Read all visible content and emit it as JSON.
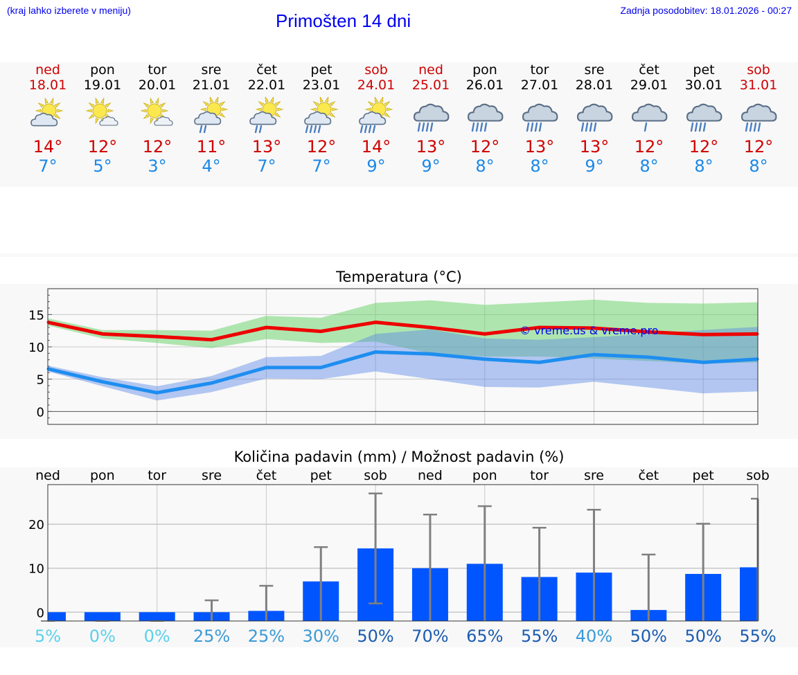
{
  "header": {
    "hint": "(kraj lahko izberete v meniju)",
    "title": "Primošten 14 dni",
    "updated": "Zadnja posodobitev: 18.01.2026 - 00:27"
  },
  "colors": {
    "title_blue": "#0000ee",
    "tmax_red": "#d00000",
    "tmin_blue": "#1a88e8",
    "bar_blue": "#0055ff",
    "error_bar_grey": "#808080",
    "max_band_green": "#8fdd8f",
    "min_band_blue": "#8ca8ee"
  },
  "days": [
    {
      "name": "ned",
      "date": "18.01",
      "weekend": true,
      "icon": "partly-cloudy-icon",
      "tmax": "14°",
      "tmin": "7°"
    },
    {
      "name": "pon",
      "date": "19.01",
      "weekend": false,
      "icon": "mostly-sunny-icon",
      "tmax": "12°",
      "tmin": "5°"
    },
    {
      "name": "tor",
      "date": "20.01",
      "weekend": false,
      "icon": "mostly-sunny-icon",
      "tmax": "12°",
      "tmin": "3°"
    },
    {
      "name": "sre",
      "date": "21.01",
      "weekend": false,
      "icon": "sun-light-rain-icon",
      "tmax": "11°",
      "tmin": "4°"
    },
    {
      "name": "čet",
      "date": "22.01",
      "weekend": false,
      "icon": "sun-light-rain-icon",
      "tmax": "13°",
      "tmin": "7°"
    },
    {
      "name": "pet",
      "date": "23.01",
      "weekend": false,
      "icon": "sun-rain-icon",
      "tmax": "12°",
      "tmin": "7°"
    },
    {
      "name": "sob",
      "date": "24.01",
      "weekend": true,
      "icon": "sun-rain-icon",
      "tmax": "14°",
      "tmin": "9°"
    },
    {
      "name": "ned",
      "date": "25.01",
      "weekend": true,
      "icon": "cloud-rain-icon",
      "tmax": "13°",
      "tmin": "9°"
    },
    {
      "name": "pon",
      "date": "26.01",
      "weekend": false,
      "icon": "cloud-rain-icon",
      "tmax": "12°",
      "tmin": "8°"
    },
    {
      "name": "tor",
      "date": "27.01",
      "weekend": false,
      "icon": "cloud-rain-icon",
      "tmax": "13°",
      "tmin": "8°"
    },
    {
      "name": "sre",
      "date": "28.01",
      "weekend": false,
      "icon": "cloud-rain-icon",
      "tmax": "13°",
      "tmin": "9°"
    },
    {
      "name": "čet",
      "date": "29.01",
      "weekend": false,
      "icon": "cloud-light-rain-icon",
      "tmax": "12°",
      "tmin": "8°"
    },
    {
      "name": "pet",
      "date": "30.01",
      "weekend": false,
      "icon": "cloud-rain-icon",
      "tmax": "12°",
      "tmin": "8°"
    },
    {
      "name": "sob",
      "date": "31.01",
      "weekend": true,
      "icon": "cloud-rain-icon",
      "tmax": "12°",
      "tmin": "8°"
    }
  ],
  "chart_data": [
    {
      "type": "line",
      "title": "Temperatura (°C)",
      "xlabel": "",
      "ylabel": "",
      "ylim": [
        -2,
        19
      ],
      "yticks": [
        0,
        5,
        10,
        15
      ],
      "grid": true,
      "watermark": "© vreme.us & vreme.pro",
      "x": [
        "18.01",
        "19.01",
        "20.01",
        "21.01",
        "22.01",
        "23.01",
        "24.01",
        "25.01",
        "26.01",
        "27.01",
        "28.01",
        "29.01",
        "30.01",
        "31.01"
      ],
      "series": [
        {
          "name": "max",
          "values": [
            13.8,
            12.0,
            11.6,
            11.1,
            13.0,
            12.4,
            13.8,
            13.0,
            12.0,
            13.0,
            12.9,
            12.3,
            11.9,
            12.0
          ],
          "band_low": [
            13.3,
            11.3,
            10.6,
            9.8,
            11.2,
            10.6,
            10.8,
            9.0,
            8.5,
            8.5,
            8.2,
            7.8,
            7.4,
            7.6
          ],
          "band_high": [
            14.4,
            12.6,
            12.6,
            12.5,
            14.8,
            14.5,
            16.8,
            17.2,
            16.5,
            16.9,
            17.3,
            16.8,
            16.7,
            16.9
          ]
        },
        {
          "name": "min",
          "values": [
            6.6,
            4.6,
            2.9,
            4.4,
            6.8,
            6.8,
            9.2,
            8.9,
            8.1,
            7.6,
            8.8,
            8.4,
            7.6,
            8.1
          ],
          "band_low": [
            6.2,
            3.9,
            1.7,
            3.0,
            5.1,
            5.0,
            6.2,
            5.0,
            3.8,
            3.7,
            4.6,
            3.7,
            2.8,
            3.1
          ],
          "band_high": [
            7.1,
            5.3,
            3.9,
            5.5,
            8.4,
            8.6,
            12.0,
            12.7,
            11.3,
            11.1,
            11.5,
            12.0,
            12.6,
            13.1
          ]
        }
      ]
    },
    {
      "type": "bar",
      "title": "Količina padavin (mm) / Možnost padavin (%)",
      "xlabel": "",
      "ylabel": "",
      "ylim": [
        -2,
        29
      ],
      "yticks": [
        0,
        10,
        20
      ],
      "grid": true,
      "categories": [
        "ned",
        "pon",
        "tor",
        "sre",
        "čet",
        "pet",
        "sob",
        "ned",
        "pon",
        "tor",
        "sre",
        "čet",
        "pet",
        "sob"
      ],
      "values": [
        0,
        0,
        0,
        0,
        0.3,
        7,
        14.5,
        10,
        11,
        8,
        9,
        0.5,
        8.7,
        10.2
      ],
      "error_low": [
        0,
        0,
        0,
        0,
        0,
        0,
        2,
        0,
        0,
        0,
        0,
        0,
        0,
        0
      ],
      "error_high": [
        0,
        0,
        0,
        2.7,
        6,
        14.8,
        27,
        22.2,
        24.1,
        19.2,
        23.3,
        13.1,
        20.1,
        25.8
      ],
      "probability": [
        "5%",
        "0%",
        "0%",
        "25%",
        "25%",
        "30%",
        "50%",
        "70%",
        "65%",
        "55%",
        "40%",
        "50%",
        "50%",
        "55%"
      ],
      "probability_colors": [
        "#5ad0ea",
        "#5ad0ea",
        "#5ad0ea",
        "#3a9ad8",
        "#3a9ad8",
        "#3a9ad8",
        "#1a5cb0",
        "#1a5cb0",
        "#1a5cb0",
        "#1a5cb0",
        "#3a9ad8",
        "#1a5cb0",
        "#1a5cb0",
        "#1a5cb0"
      ]
    }
  ]
}
